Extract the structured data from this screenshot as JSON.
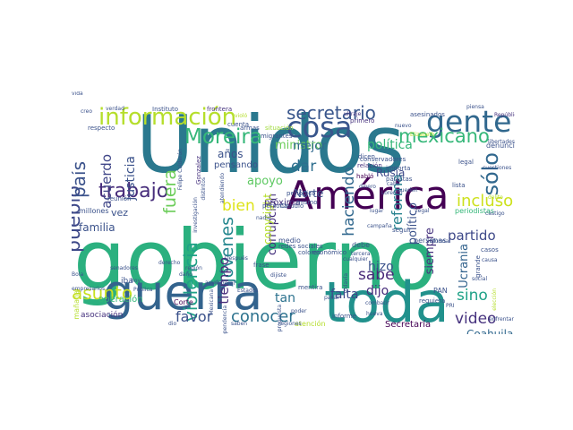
{
  "wordcloud": {
    "words": [
      {
        "text": "gobierno",
        "color": "#2bb07f"
      },
      {
        "text": "Unidos",
        "color": "#2a788e"
      },
      {
        "text": "toda",
        "color": "#21918c"
      },
      {
        "text": "guerra",
        "color": "#33638d"
      },
      {
        "text": "América",
        "color": "#440154"
      },
      {
        "text": "gente",
        "color": "#31688e"
      },
      {
        "text": "información",
        "color": "#b5de2b"
      },
      {
        "text": "cosa",
        "color": "#39568c"
      },
      {
        "text": "secretario",
        "color": "#39568c"
      },
      {
        "text": "Moreira",
        "color": "#35b779"
      },
      {
        "text": "pueblo",
        "color": "#3e4989"
      },
      {
        "text": "mexicano",
        "color": "#35b779"
      },
      {
        "text": "trabajo",
        "color": "#472d7b"
      },
      {
        "text": "país",
        "color": "#3b528b"
      },
      {
        "text": "violencia",
        "color": "#1fa187"
      },
      {
        "text": "fuera",
        "color": "#6ccd5a"
      },
      {
        "text": "sólo",
        "color": "#31688e"
      },
      {
        "text": "incluso",
        "color": "#cde11d"
      },
      {
        "text": "asunto",
        "color": "#c8e020"
      },
      {
        "text": "conocer",
        "color": "#2c728e"
      },
      {
        "text": "favor",
        "color": "#3b528b"
      },
      {
        "text": "video",
        "color": "#46327e"
      },
      {
        "text": "sino",
        "color": "#1fa187"
      },
      {
        "text": "haciendo",
        "color": "#31688e"
      },
      {
        "text": "reforma",
        "color": "#26828e"
      },
      {
        "text": "sabe",
        "color": "#482878"
      },
      {
        "text": "partido",
        "color": "#3e4989"
      },
      {
        "text": "dar",
        "color": "#2e6e8e"
      },
      {
        "text": "bien",
        "color": "#dde318"
      },
      {
        "text": "jóvenes",
        "color": "#24878e"
      },
      {
        "text": "justicia",
        "color": "#3b528b"
      },
      {
        "text": "acuerdo",
        "color": "#404688"
      },
      {
        "text": "tiempo",
        "color": "#472d7b"
      },
      {
        "text": "política",
        "color": "#35b779"
      },
      {
        "text": "ministro",
        "color": "#6ccd5a"
      },
      {
        "text": "mejor",
        "color": "#31688e"
      },
      {
        "text": "apoyo",
        "color": "#5ec962"
      },
      {
        "text": "dijo",
        "color": "#472d7b"
      },
      {
        "text": "hizo",
        "color": "#3b528b"
      },
      {
        "text": "falta",
        "color": "#3e4989"
      },
      {
        "text": "tan",
        "color": "#2c728e"
      },
      {
        "text": "Ucrania",
        "color": "#33638d"
      },
      {
        "text": "Coahuila",
        "color": "#31688e"
      },
      {
        "text": "corrupción",
        "color": "#46327e"
      },
      {
        "text": "político",
        "color": "#3b528b"
      },
      {
        "text": "siempre",
        "color": "#46327e"
      },
      {
        "text": "Rusia",
        "color": "#3e4989"
      },
      {
        "text": "familia",
        "color": "#3b528b"
      },
      {
        "text": "Norte",
        "color": "#3b528b"
      },
      {
        "text": "años",
        "color": "#3b528b"
      },
      {
        "text": "vez",
        "color": "#3b528b"
      },
      {
        "text": "millones",
        "color": "#3b528b"
      },
      {
        "text": "copyright",
        "color": "#b5de2b"
      },
      {
        "text": "pensando",
        "color": "#3b528b"
      },
      {
        "text": "próxima",
        "color": "#46327e"
      },
      {
        "text": "Secretaría",
        "color": "#440154"
      },
      {
        "text": "operación",
        "color": "#35b779"
      },
      {
        "text": "asociación",
        "color": "#46327e"
      },
      {
        "text": "mañana",
        "color": "#b5de2b"
      },
      {
        "text": "medio",
        "color": "#3b528b"
      },
      {
        "text": "iba",
        "color": "#3b528b"
      },
      {
        "text": "Corte",
        "color": "#440154"
      },
      {
        "text": "PAN",
        "color": "#3b528b"
      },
      {
        "text": "debe",
        "color": "#3b528b"
      },
      {
        "text": "persona",
        "color": "#3b528b"
      },
      {
        "text": "personas",
        "color": "#3b528b"
      },
      {
        "text": "Instituto",
        "color": "#3b528b"
      },
      {
        "text": "frontera",
        "color": "#46327e"
      },
      {
        "text": "verdad",
        "color": "#3b528b"
      },
      {
        "text": "armas",
        "color": "#3b528b"
      },
      {
        "text": "situación",
        "color": "#9fda3a"
      },
      {
        "text": "asesinados",
        "color": "#3b528b"
      },
      {
        "text": "primero",
        "color": "#46327e"
      },
      {
        "text": "piensa",
        "color": "#3b528b"
      },
      {
        "text": "República",
        "color": "#46327e"
      },
      {
        "text": "respecto",
        "color": "#3b528b"
      },
      {
        "text": "Felipe Calderón",
        "color": "#3b528b"
      },
      {
        "text": "Gonzalez",
        "color": "#46327e"
      },
      {
        "text": "ultraje",
        "color": "#46327e"
      },
      {
        "text": "conservadores",
        "color": "#3b528b"
      },
      {
        "text": "periodistas",
        "color": "#35b779"
      },
      {
        "text": "denuncia",
        "color": "#3b528b"
      },
      {
        "text": "lista",
        "color": "#3b528b"
      },
      {
        "text": "legal",
        "color": "#3b528b"
      },
      {
        "text": "dicen",
        "color": "#3b528b"
      },
      {
        "text": "relación",
        "color": "#46327e"
      },
      {
        "text": "habló",
        "color": "#440154"
      },
      {
        "text": "dinero",
        "color": "#3b528b"
      },
      {
        "text": "importa",
        "color": "#3b528b"
      },
      {
        "text": "panistas",
        "color": "#3b528b"
      },
      {
        "text": "cabo",
        "color": "#3b528b"
      },
      {
        "text": "pueden",
        "color": "#3b528b"
      },
      {
        "text": "Lorenzo",
        "color": "#3b528b"
      },
      {
        "text": "cuenta",
        "color": "#3b528b"
      },
      {
        "text": "migrantes",
        "color": "#3b528b"
      },
      {
        "text": "archivos",
        "color": "#3b528b"
      },
      {
        "text": "creo",
        "color": "#3b528b"
      },
      {
        "text": "investigación",
        "color": "#3b528b"
      },
      {
        "text": "reunión",
        "color": "#3b528b"
      },
      {
        "text": "Claudio",
        "color": "#3b528b"
      },
      {
        "text": "mismo",
        "color": "#3b528b"
      },
      {
        "text": "periódico",
        "color": "#3b528b"
      },
      {
        "text": "nadie",
        "color": "#3b528b"
      },
      {
        "text": "campaña",
        "color": "#3b528b"
      },
      {
        "text": "lugar",
        "color": "#3b528b"
      },
      {
        "text": "seguir",
        "color": "#3b528b"
      },
      {
        "text": "informar",
        "color": "#3b528b"
      },
      {
        "text": "casos",
        "color": "#3b528b"
      },
      {
        "text": "causa",
        "color": "#3b528b"
      },
      {
        "text": "hoy",
        "color": "#3b528b"
      },
      {
        "text": "región",
        "color": "#3b528b"
      },
      {
        "text": "ayuda",
        "color": "#3b528b"
      },
      {
        "text": "Después",
        "color": "#3b528b"
      },
      {
        "text": "frase",
        "color": "#3b528b"
      },
      {
        "text": "redes sociales",
        "color": "#3b528b"
      },
      {
        "text": "colores",
        "color": "#3b528b"
      },
      {
        "text": "económico",
        "color": "#3b528b"
      },
      {
        "text": "cualquier",
        "color": "#3b528b"
      },
      {
        "text": "requiera",
        "color": "#3b528b"
      },
      {
        "text": "PRI",
        "color": "#3b528b"
      },
      {
        "text": "mentira",
        "color": "#3b528b"
      },
      {
        "text": "informe",
        "color": "#3b528b"
      },
      {
        "text": "atención",
        "color": "#b5de2b"
      },
      {
        "text": "saben",
        "color": "#3b528b"
      },
      {
        "text": "dio",
        "color": "#3b528b"
      },
      {
        "text": "poder",
        "color": "#3b528b"
      },
      {
        "text": "regiones",
        "color": "#3b528b"
      },
      {
        "text": "castigo",
        "color": "#3b528b"
      },
      {
        "text": "grande",
        "color": "#3b528b"
      },
      {
        "text": "elección",
        "color": "#b5de2b"
      },
      {
        "text": "daño",
        "color": "#3b528b"
      },
      {
        "text": "Mexicana",
        "color": "#3b528b"
      },
      {
        "text": "derecho",
        "color": "#3b528b"
      },
      {
        "text": "Federal",
        "color": "#3b528b"
      },
      {
        "text": "dijiste",
        "color": "#3b528b"
      },
      {
        "text": "todavía",
        "color": "#3b528b"
      },
      {
        "text": "combatir",
        "color": "#3b528b"
      },
      {
        "text": "hueva",
        "color": "#3b528b"
      },
      {
        "text": "nuevo",
        "color": "#3b528b"
      },
      {
        "text": "libertades",
        "color": "#3b528b"
      },
      {
        "text": "cuestiones",
        "color": "#3b528b"
      },
      {
        "text": "delito",
        "color": "#b5de2b"
      },
      {
        "text": "violó",
        "color": "#b5de2b"
      },
      {
        "text": "Elizabeth",
        "color": "#b5de2b"
      },
      {
        "text": "legal",
        "color": "#3b528b"
      },
      {
        "text": "quieren",
        "color": "#3b528b"
      },
      {
        "text": "Gobernación",
        "color": "#3b528b"
      },
      {
        "text": "empresarios",
        "color": "#3b528b"
      },
      {
        "text": "Pública",
        "color": "#3b528b"
      },
      {
        "text": "Bola",
        "color": "#3b528b"
      },
      {
        "text": "social",
        "color": "#3b528b"
      },
      {
        "text": "enfrentar",
        "color": "#3b528b"
      },
      {
        "text": "tercera",
        "color": "#3b528b"
      },
      {
        "text": "pasar",
        "color": "#3b528b"
      },
      {
        "text": "senadores",
        "color": "#3b528b"
      },
      {
        "text": "atendiendo",
        "color": "#3b528b"
      },
      {
        "text": "distintos",
        "color": "#3b528b"
      },
      {
        "text": "propuesta",
        "color": "#3b528b"
      },
      {
        "text": "Independencia",
        "color": "#3b528b"
      },
      {
        "text": "Estados",
        "color": "#3b528b"
      },
      {
        "text": "vida",
        "color": "#3b528b"
      }
    ]
  }
}
